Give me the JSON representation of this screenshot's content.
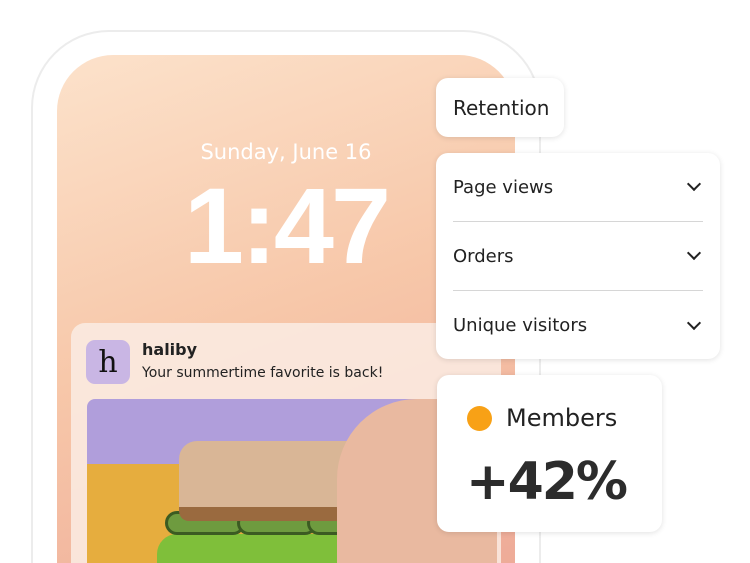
{
  "lockscreen": {
    "date": "Sunday, June 16",
    "time": "1:47"
  },
  "notification": {
    "app_icon": "h",
    "app_name": "haliby",
    "message": "Your summertime favorite is back!"
  },
  "retention": {
    "label": "Retention"
  },
  "metrics_dropdown": {
    "items": [
      {
        "label": "Page views"
      },
      {
        "label": "Orders"
      },
      {
        "label": "Unique visitors"
      }
    ]
  },
  "members": {
    "label": "Members",
    "value": "+42%",
    "dot_color": "#f8a116"
  }
}
